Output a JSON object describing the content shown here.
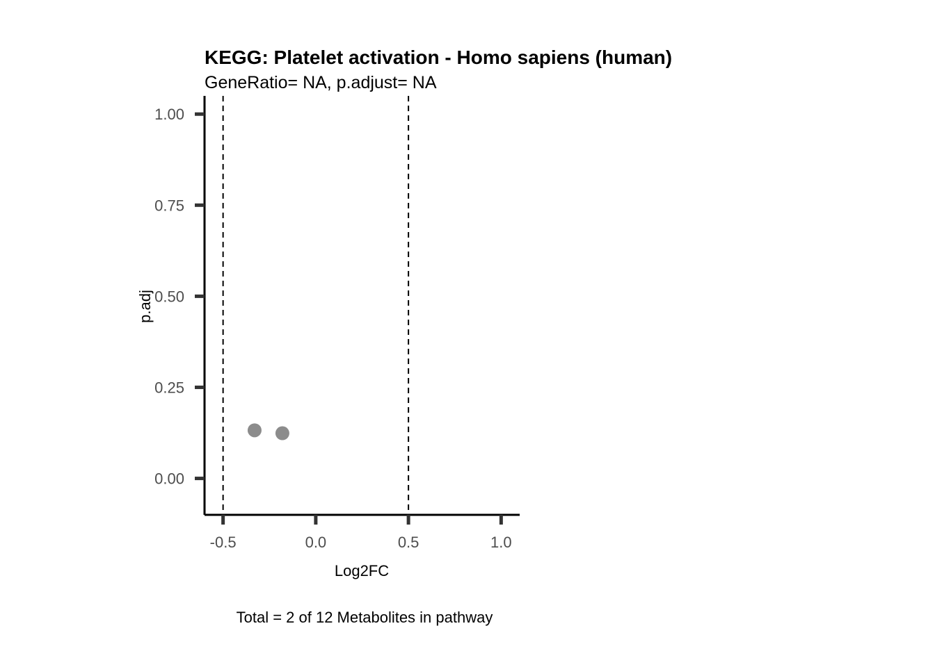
{
  "chart_data": {
    "type": "scatter",
    "title": "KEGG: Platelet activation - Homo sapiens (human)",
    "subtitle": "GeneRatio= NA, p.adjust= NA",
    "xlabel": "Log2FC",
    "ylabel": "p.adj",
    "caption": "Total = 2 of 12 Metabolites in pathway",
    "xlim": [
      -0.6,
      1.1
    ],
    "ylim": [
      -0.1,
      1.05
    ],
    "x_ticks": [
      -0.5,
      0.0,
      0.5,
      1.0
    ],
    "x_tick_labels": [
      "-0.5",
      "0.0",
      "0.5",
      "1.0"
    ],
    "y_ticks": [
      0.0,
      0.25,
      0.5,
      0.75,
      1.0
    ],
    "y_tick_labels": [
      "0.00",
      "0.25",
      "0.50",
      "0.75",
      "1.00"
    ],
    "vlines": [
      -0.5,
      0.5
    ],
    "grid": false,
    "point_color": "#8c8c8c",
    "series": [
      {
        "x": [
          -0.33,
          -0.18
        ],
        "y": [
          0.132,
          0.124
        ]
      }
    ]
  }
}
